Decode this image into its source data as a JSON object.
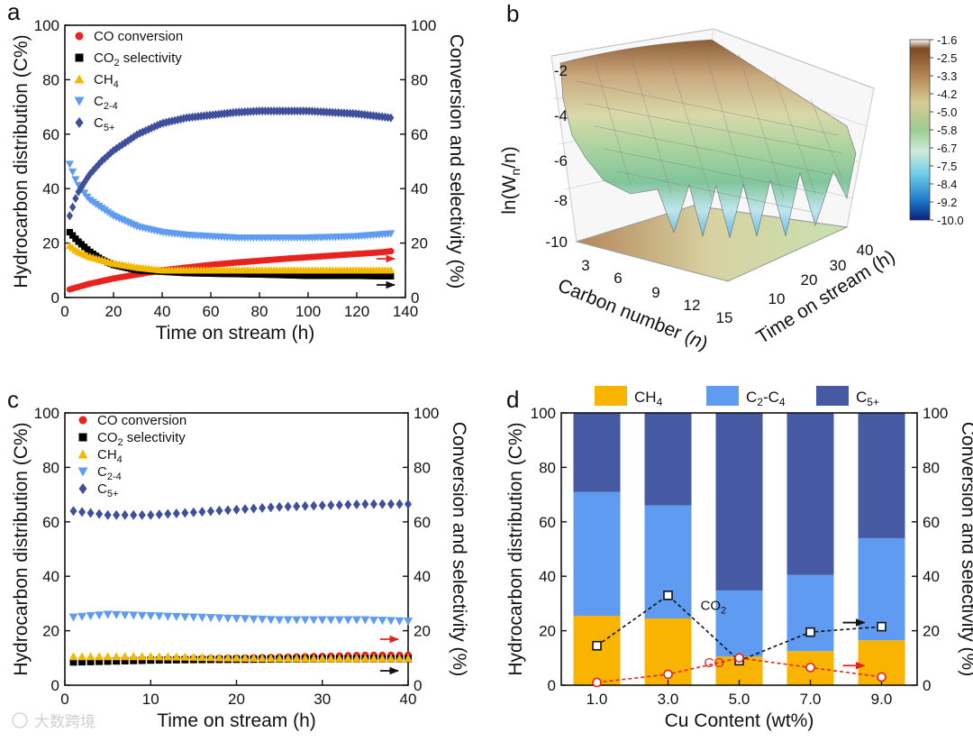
{
  "chart_data": [
    {
      "panel": "a",
      "type": "scatter",
      "xlabel": "Time on stream (h)",
      "ylabel": "Hydrocarbon distribution (C%)",
      "y2label": "Conversion and selectivity (%)",
      "xlim": [
        0,
        140
      ],
      "ylim": [
        0,
        100
      ],
      "y2lim": [
        0,
        100
      ],
      "xticks": [
        0,
        20,
        40,
        60,
        80,
        100,
        120,
        140
      ],
      "yticks": [
        0,
        20,
        40,
        60,
        80,
        100
      ],
      "legend": [
        "CO conversion",
        "CO2 selectivity",
        "CH4",
        "C2-4",
        "C5+"
      ],
      "legend_placement": "top-left",
      "series": [
        {
          "name": "CO conversion",
          "axis": "right",
          "color": "#e8231f",
          "marker": "circle",
          "x": [
            2,
            10,
            20,
            30,
            40,
            50,
            60,
            70,
            80,
            90,
            100,
            110,
            120,
            130,
            134
          ],
          "values": [
            3,
            5,
            7,
            8.5,
            10,
            11,
            12,
            12.8,
            13.5,
            14.2,
            14.8,
            15.4,
            16,
            16.6,
            17
          ]
        },
        {
          "name": "CO2 selectivity",
          "axis": "right",
          "color": "#000000",
          "marker": "square",
          "x": [
            2,
            5,
            10,
            15,
            20,
            30,
            40,
            50,
            60,
            80,
            100,
            120,
            134
          ],
          "values": [
            24,
            21,
            17,
            14,
            12,
            10,
            9.5,
            9,
            8.8,
            8.5,
            8,
            8,
            7.8
          ]
        },
        {
          "name": "CH4",
          "axis": "left",
          "color": "#f5b800",
          "marker": "triangle-up",
          "x": [
            2,
            5,
            10,
            20,
            30,
            40,
            60,
            80,
            100,
            120,
            134
          ],
          "values": [
            19,
            17,
            15,
            12.5,
            11,
            10,
            10,
            10,
            10,
            10,
            10
          ]
        },
        {
          "name": "C2-4",
          "axis": "left",
          "color": "#5f9cf1",
          "marker": "triangle-down",
          "x": [
            2,
            5,
            10,
            20,
            30,
            40,
            50,
            60,
            70,
            80,
            90,
            100,
            110,
            120,
            134
          ],
          "values": [
            49,
            42,
            36,
            30,
            26,
            24,
            23,
            22.5,
            22,
            22,
            22,
            22,
            22.2,
            22.5,
            23.5
          ]
        },
        {
          "name": "C5+",
          "axis": "left",
          "color": "#3f4f9c",
          "marker": "diamond",
          "x": [
            2,
            5,
            10,
            15,
            20,
            30,
            40,
            50,
            60,
            70,
            80,
            90,
            100,
            110,
            120,
            134
          ],
          "values": [
            30,
            38,
            45,
            50,
            54,
            60,
            64,
            66,
            67,
            68,
            68.5,
            68.5,
            68.5,
            68,
            67.5,
            66
          ]
        }
      ],
      "annotations": [
        "red arrow right",
        "black arrow right"
      ]
    },
    {
      "panel": "b",
      "type": "surface3d",
      "xlabel": "Carbon number (n)",
      "ylabel": "Time on stream (h)",
      "zlabel": "ln(Wn/n)",
      "xticks": [
        3,
        6,
        9,
        12,
        15
      ],
      "yticks": [
        10,
        20,
        30,
        40
      ],
      "zticks": [
        -10,
        -8,
        -6,
        -4,
        -2
      ],
      "colorbar_ticks": [
        "-1.6",
        "-2.5",
        "-3.3",
        "-4.2",
        "-5.0",
        "-5.8",
        "-6.7",
        "-7.5",
        "-8.4",
        "-9.2",
        "-10.0"
      ]
    },
    {
      "panel": "c",
      "type": "scatter",
      "xlabel": "Time on stream (h)",
      "ylabel": "Hydrocarbon distribution (C%)",
      "y2label": "Conversion and selectivity (%)",
      "xlim": [
        0,
        40
      ],
      "ylim": [
        0,
        100
      ],
      "y2lim": [
        0,
        100
      ],
      "xticks": [
        0,
        10,
        20,
        30,
        40
      ],
      "yticks": [
        0,
        20,
        40,
        60,
        80,
        100
      ],
      "legend": [
        "CO conversion",
        "CO2 selectivity",
        "CH4",
        "C2-4",
        "C5+"
      ],
      "legend_placement": "top-left",
      "series": [
        {
          "name": "CO conversion",
          "axis": "right",
          "color": "#e8231f",
          "marker": "circle",
          "x": [
            1,
            5,
            10,
            15,
            20,
            25,
            30,
            35,
            40
          ],
          "values": [
            9,
            9.3,
            9.6,
            9.8,
            10,
            10.3,
            10.6,
            11,
            11
          ]
        },
        {
          "name": "CO2 selectivity",
          "axis": "right",
          "color": "#000000",
          "marker": "square",
          "x": [
            1,
            5,
            10,
            15,
            20,
            25,
            30,
            35,
            40
          ],
          "values": [
            8.5,
            8.8,
            9.2,
            9.4,
            9.5,
            9.6,
            9.7,
            9.7,
            9.7
          ]
        },
        {
          "name": "CH4",
          "axis": "left",
          "color": "#f5b800",
          "marker": "triangle-up",
          "x": [
            1,
            5,
            10,
            15,
            20,
            25,
            30,
            35,
            40
          ],
          "values": [
            10.5,
            10.5,
            10.5,
            10.3,
            10,
            9.8,
            9.8,
            9.8,
            9.8
          ]
        },
        {
          "name": "C2-4",
          "axis": "left",
          "color": "#5f9cf1",
          "marker": "triangle-down",
          "x": [
            1,
            5,
            10,
            15,
            20,
            25,
            30,
            35,
            40
          ],
          "values": [
            25,
            26,
            25.5,
            25,
            24.5,
            24,
            24,
            24,
            23.5
          ]
        },
        {
          "name": "C5+",
          "axis": "left",
          "color": "#3f4f9c",
          "marker": "diamond",
          "x": [
            1,
            5,
            10,
            15,
            20,
            25,
            30,
            35,
            40
          ],
          "values": [
            64,
            62.5,
            62.5,
            63.5,
            64.5,
            65.5,
            66,
            66.5,
            66.5
          ]
        }
      ],
      "annotations": [
        "red arrow right",
        "black arrow right"
      ]
    },
    {
      "panel": "d",
      "type": "bar",
      "stacked": true,
      "xlabel": "Cu Content (wt%)",
      "ylabel": "Hydrocarbon distribution (C%)",
      "y2label": "Conversion and selectivity (%)",
      "categories": [
        "1.0",
        "3.0",
        "5.0",
        "7.0",
        "9.0"
      ],
      "ylim": [
        0,
        100
      ],
      "y2lim": [
        0,
        100
      ],
      "yticks": [
        0,
        20,
        40,
        60,
        80,
        100
      ],
      "legend_placement": "top",
      "series": [
        {
          "name": "CH4",
          "color": "#f8b400",
          "values": [
            25.5,
            24.5,
            10.5,
            12.5,
            16.5
          ]
        },
        {
          "name": "C2-C4",
          "color": "#5f9cf1",
          "values": [
            45.5,
            41.5,
            24.3,
            28,
            37.5
          ]
        },
        {
          "name": "C5+",
          "color": "#4659a3",
          "values": [
            29,
            34,
            65.2,
            59.5,
            46
          ]
        }
      ],
      "lines": [
        {
          "name": "CO2",
          "axis": "right",
          "color": "#111111",
          "marker": "open-square",
          "values": [
            14.5,
            33,
            9,
            19.5,
            21.5
          ]
        },
        {
          "name": "CO",
          "axis": "right",
          "color": "#e8231f",
          "marker": "open-circle",
          "values": [
            1,
            4,
            10,
            6.5,
            3
          ]
        }
      ]
    }
  ],
  "panels": {
    "a": {
      "letter": "a"
    },
    "b": {
      "letter": "b"
    },
    "c": {
      "letter": "c"
    },
    "d": {
      "letter": "d"
    }
  },
  "watermark": "大数跨境",
  "colors": {
    "red": "#e8231f",
    "black": "#000000",
    "yellow": "#f5b800",
    "lightblue": "#5f9cf1",
    "navy": "#3f4f9c"
  }
}
